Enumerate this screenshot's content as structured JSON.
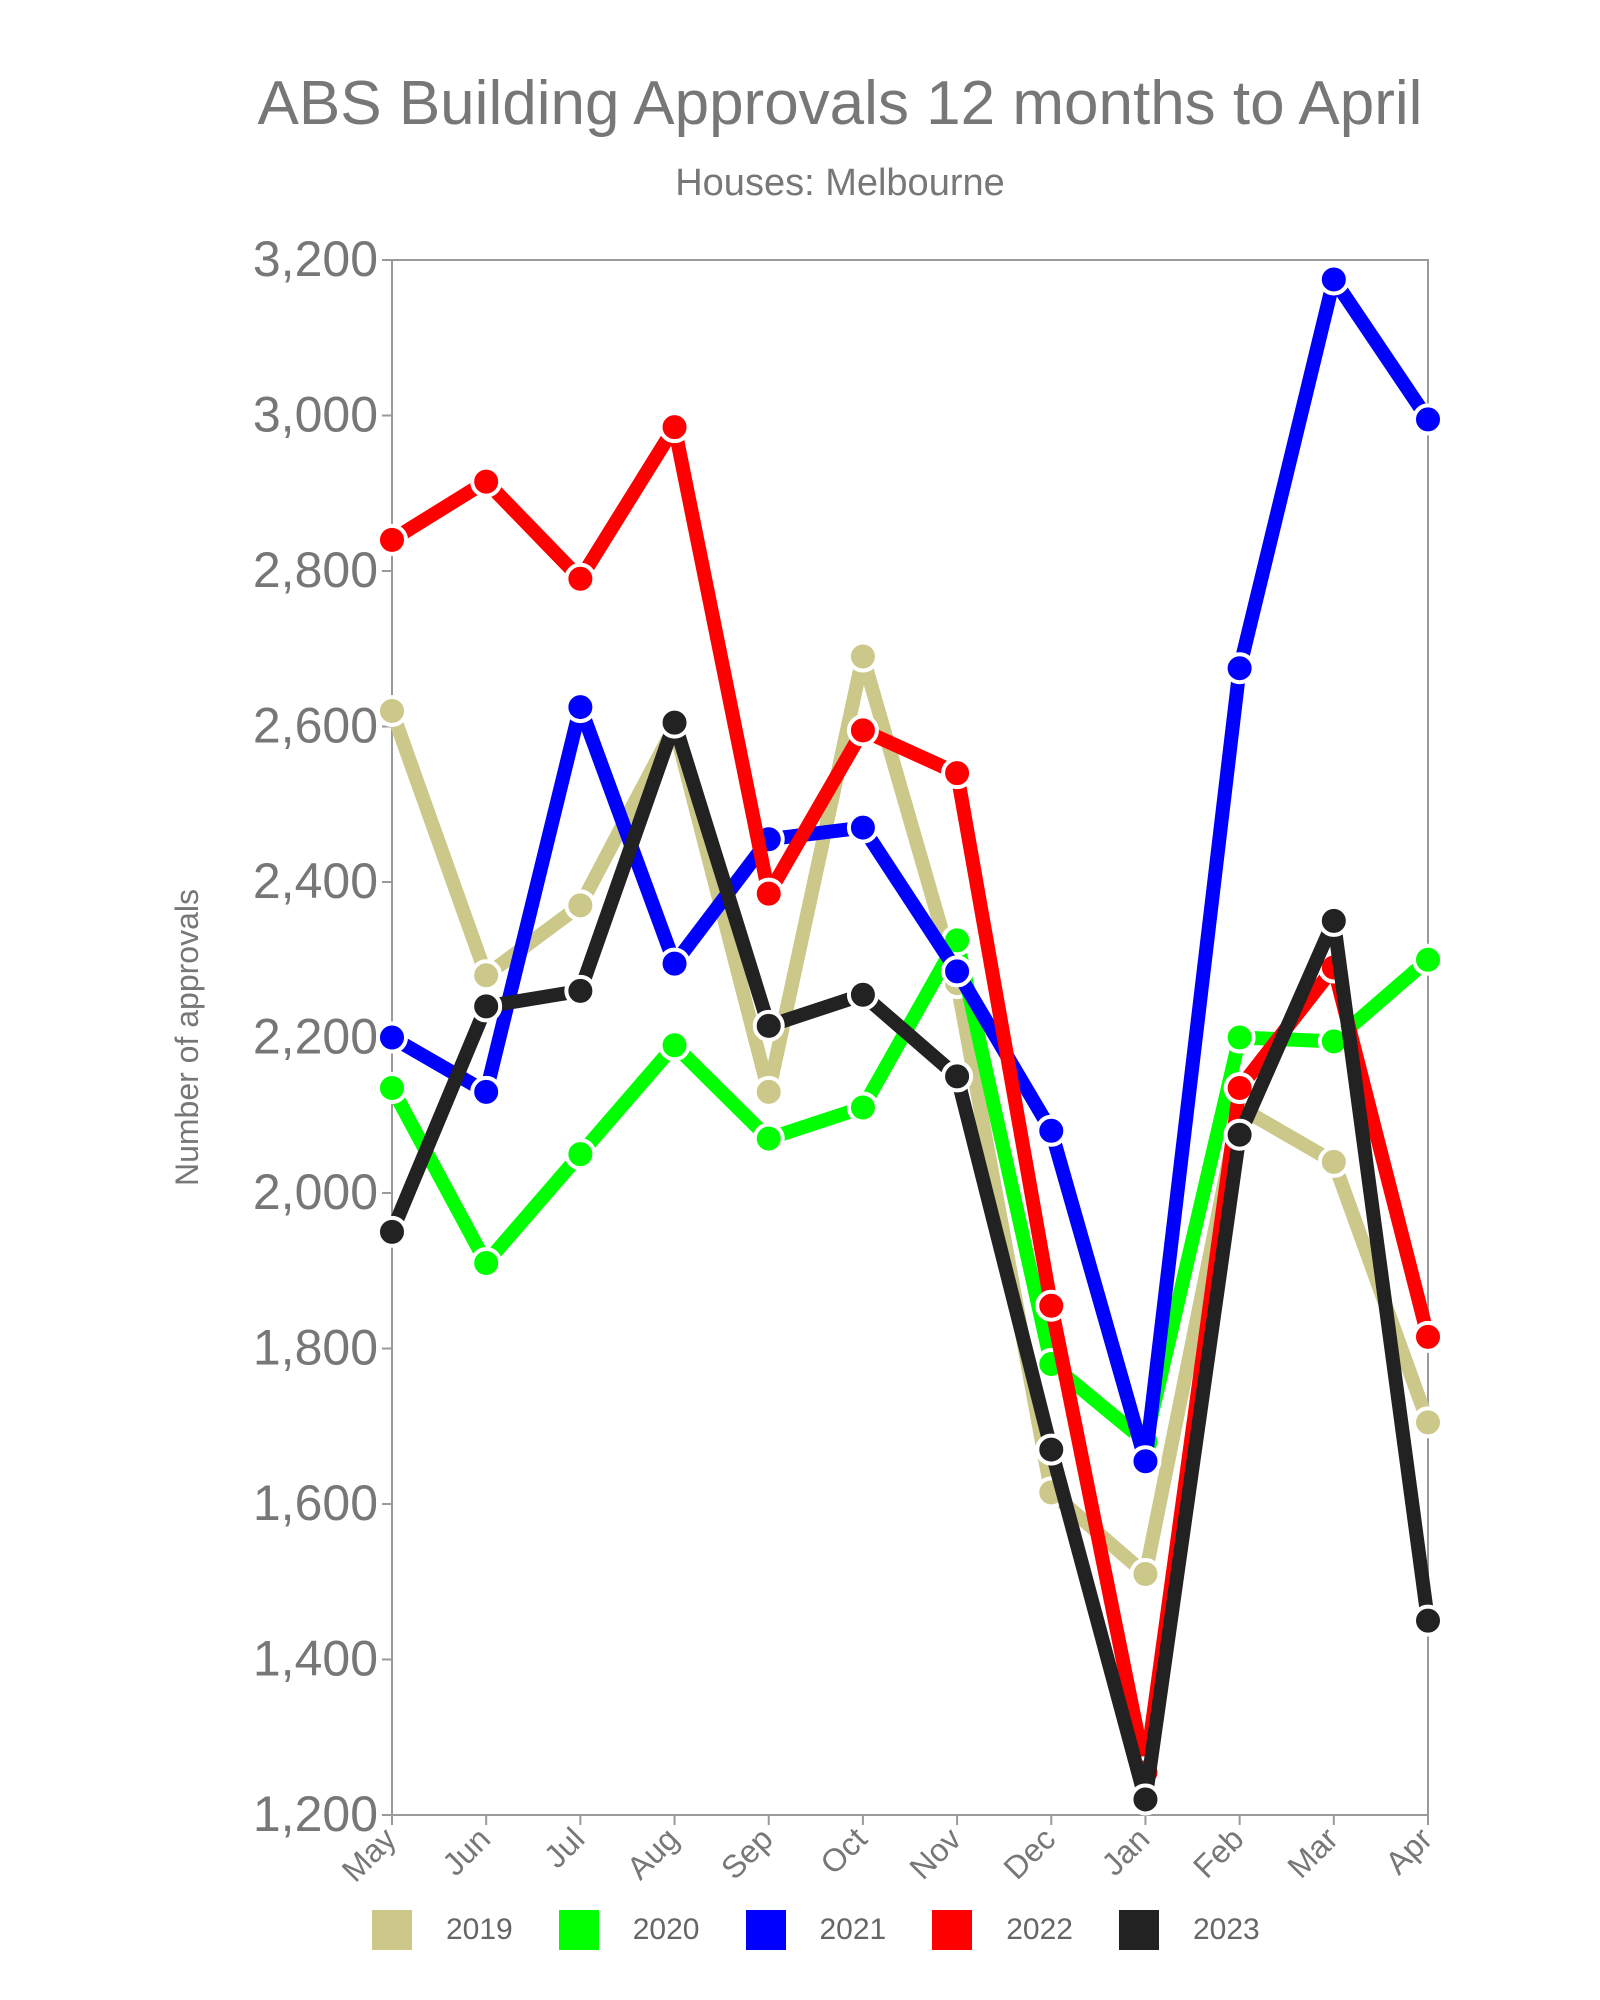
{
  "chart_data": {
    "type": "line",
    "title": "ABS Building Approvals 12 months to April",
    "subtitle": "Houses: Melbourne",
    "xlabel": "",
    "ylabel": "Number of approvals",
    "ylim": [
      1200,
      3200
    ],
    "yticks": [
      1200,
      1400,
      1600,
      1800,
      2000,
      2200,
      2400,
      2600,
      2800,
      3000,
      3200
    ],
    "ytick_labels": [
      "1,200",
      "1,400",
      "1,600",
      "1,800",
      "2,000",
      "2,200",
      "2,400",
      "2,600",
      "2,800",
      "3,000",
      "3,200"
    ],
    "categories": [
      "May",
      "Jun",
      "Jul",
      "Aug",
      "Sep",
      "Oct",
      "Nov",
      "Dec",
      "Jan",
      "Feb",
      "Mar",
      "Apr"
    ],
    "grid": false,
    "legend_position": "bottom",
    "series": [
      {
        "name": "2019",
        "color": "#cbc88a",
        "values": [
          2620,
          2280,
          2370,
          2600,
          2130,
          2690,
          2270,
          1615,
          1510,
          2110,
          2040,
          1705
        ]
      },
      {
        "name": "2020",
        "color": "#00ff00",
        "values": [
          2135,
          1910,
          2050,
          2190,
          2070,
          2110,
          2325,
          1780,
          1680,
          2200,
          2195,
          2300
        ]
      },
      {
        "name": "2021",
        "color": "#0000ff",
        "values": [
          2200,
          2130,
          2625,
          2295,
          2455,
          2470,
          2285,
          2080,
          1655,
          2675,
          3175,
          2995
        ]
      },
      {
        "name": "2022",
        "color": "#ff0000",
        "values": [
          2840,
          2915,
          2790,
          2985,
          2385,
          2595,
          2540,
          1855,
          1255,
          2135,
          2290,
          1815
        ]
      },
      {
        "name": "2023",
        "color": "#222222",
        "values": [
          1950,
          2240,
          2260,
          2605,
          2215,
          2255,
          2150,
          1670,
          1220,
          2075,
          2350,
          1450
        ]
      }
    ]
  }
}
